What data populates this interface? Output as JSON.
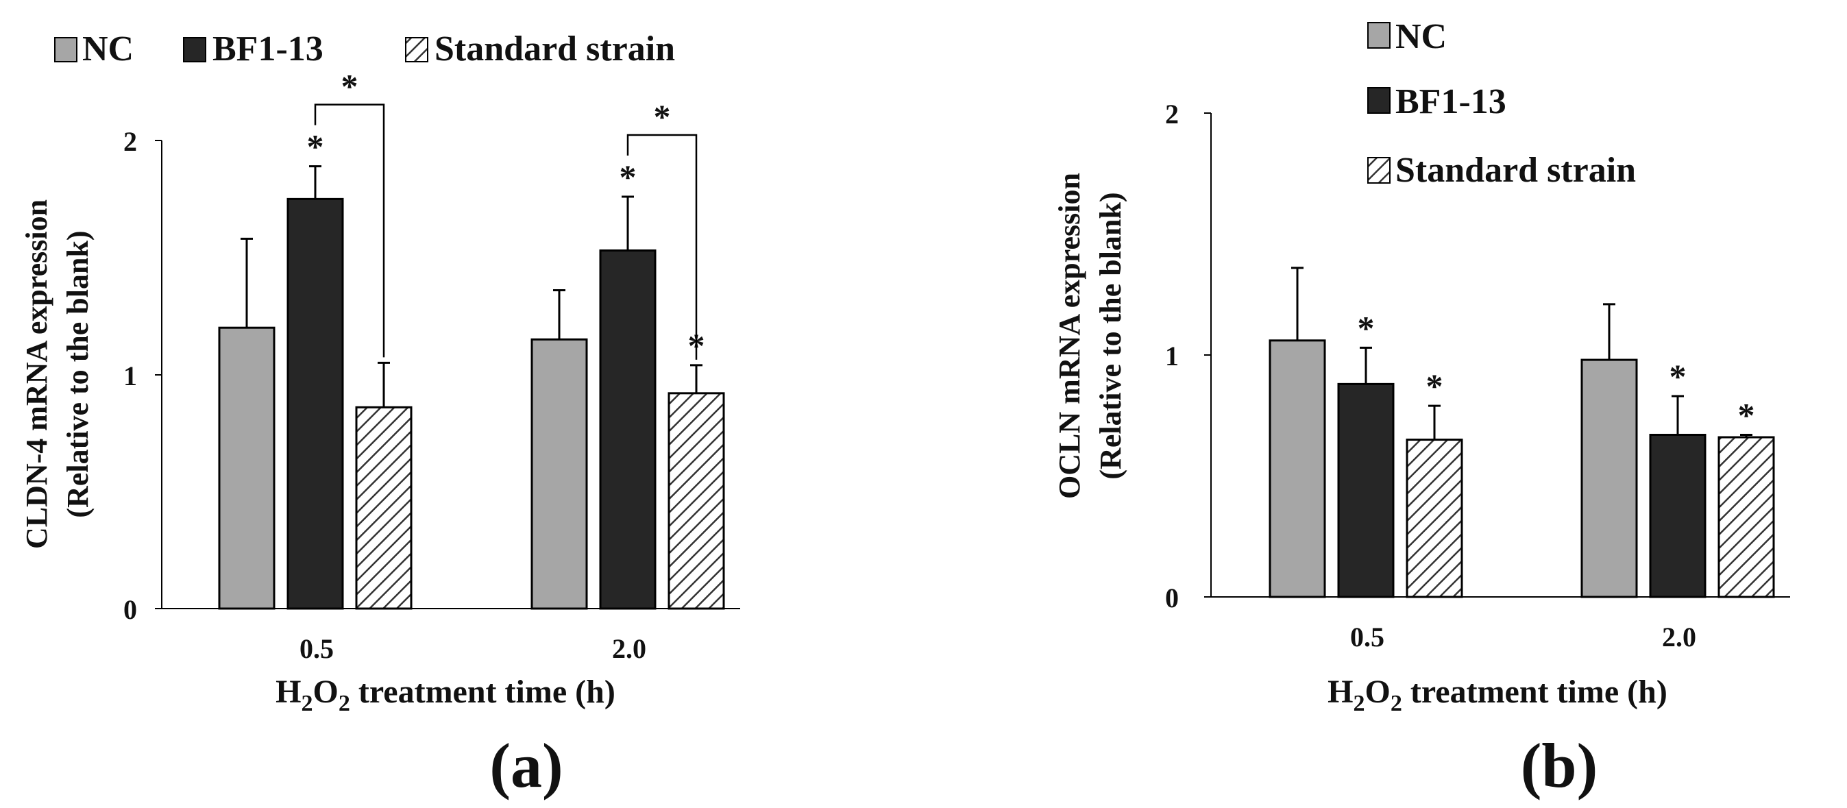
{
  "chart_data": [
    {
      "type": "bar",
      "panel_label": "(a)",
      "ylabel_line1": "CLDN-4 mRNA expression",
      "ylabel_line2": "(Relative to the blank)",
      "xlabel": {
        "prefix": "H",
        "sub1": "2",
        "mid": "O",
        "sub2": "2",
        "suffix": " treatment time (h)"
      },
      "categories": [
        "0.5",
        "2.0"
      ],
      "ylim": [
        0,
        2
      ],
      "yticks": [
        "0",
        "1",
        "2"
      ],
      "legend_position": "top, horizontal",
      "series": [
        {
          "name": "NC",
          "values": [
            1.2,
            1.15
          ],
          "errors": [
            0.38,
            0.21
          ],
          "star": [
            false,
            false
          ]
        },
        {
          "name": "BF1-13",
          "values": [
            1.75,
            1.53
          ],
          "errors": [
            0.14,
            0.23
          ],
          "star": [
            true,
            true
          ]
        },
        {
          "name": "Standard strain",
          "values": [
            0.86,
            0.92
          ],
          "errors": [
            0.19,
            0.12
          ],
          "star": [
            false,
            true
          ]
        }
      ],
      "brackets": [
        {
          "category": 0,
          "from": 1,
          "to": 2,
          "label": "*"
        },
        {
          "category": 1,
          "from": 1,
          "to": 2,
          "label": "*"
        }
      ],
      "star_label": "*"
    },
    {
      "type": "bar",
      "panel_label": "(b)",
      "ylabel_line1": "OCLN mRNA expression",
      "ylabel_line2": "(Relative to the blank)",
      "xlabel": {
        "prefix": "H",
        "sub1": "2",
        "mid": "O",
        "sub2": "2",
        "suffix": " treatment time (h)"
      },
      "categories": [
        "0.5",
        "2.0"
      ],
      "ylim": [
        0,
        2
      ],
      "yticks": [
        "0",
        "1",
        "2"
      ],
      "legend_position": "top-right, vertical",
      "series": [
        {
          "name": "NC",
          "values": [
            1.06,
            0.98
          ],
          "errors": [
            0.3,
            0.23
          ],
          "star": [
            false,
            false
          ]
        },
        {
          "name": "BF1-13",
          "values": [
            0.88,
            0.67
          ],
          "errors": [
            0.15,
            0.16
          ],
          "star": [
            true,
            true
          ]
        },
        {
          "name": "Standard strain",
          "values": [
            0.65,
            0.66
          ],
          "errors": [
            0.14,
            0.01
          ],
          "star": [
            true,
            true
          ]
        }
      ],
      "brackets": [],
      "star_label": "*"
    }
  ]
}
